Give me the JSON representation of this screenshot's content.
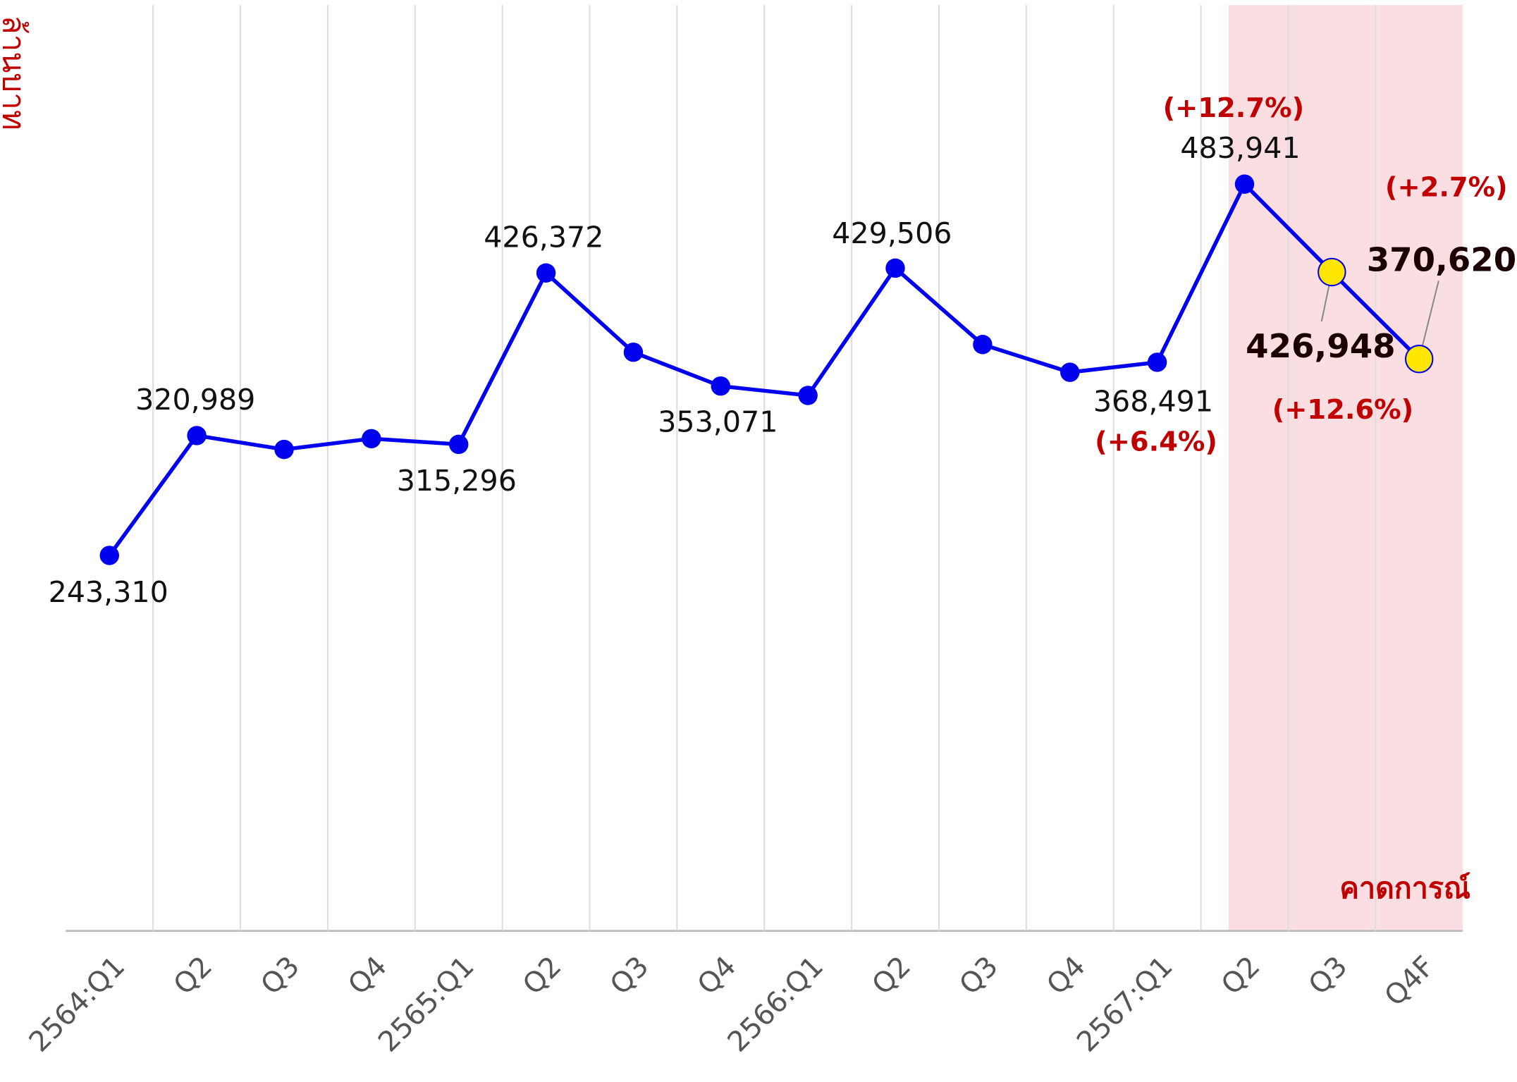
{
  "chart_data": {
    "type": "line",
    "y_axis_label": "ล้านบาท",
    "forecast_label": "คาดการณ์",
    "categories": [
      "2564:Q1",
      "Q2",
      "Q3",
      "Q4",
      "2565:Q1",
      "Q2",
      "Q3",
      "Q4",
      "2566:Q1",
      "Q2",
      "Q3",
      "Q4",
      "2567:Q1",
      "Q2",
      "Q3",
      "Q4F"
    ],
    "ylim": [
      0,
      600000
    ],
    "grid": true,
    "series": [
      {
        "color": "#0000ee",
        "marker_colors": [
          "#0000ee",
          "#0000ee",
          "#0000ee",
          "#0000ee",
          "#0000ee",
          "#0000ee",
          "#0000ee",
          "#0000ee",
          "#0000ee",
          "#0000ee",
          "#0000ee",
          "#0000ee",
          "#0000ee",
          "#0000ee",
          "#ffe600",
          "#ffe600"
        ],
        "values": [
          243310,
          320989,
          312000,
          319000,
          315296,
          426372,
          375000,
          353071,
          347000,
          429506,
          380000,
          362000,
          368491,
          483941,
          426948,
          370620
        ],
        "value_labels": [
          "243,310",
          "320,989",
          null,
          null,
          "315,296",
          "426,372",
          null,
          "353,071",
          null,
          "429,506",
          null,
          null,
          "368,491",
          "483,941",
          "426,948",
          "370,620"
        ],
        "change_labels": [
          null,
          null,
          null,
          null,
          null,
          null,
          null,
          null,
          null,
          null,
          null,
          null,
          "(+6.4%)",
          "(+12.7%)",
          "(+12.6%)",
          "(+2.7%)"
        ]
      }
    ]
  }
}
